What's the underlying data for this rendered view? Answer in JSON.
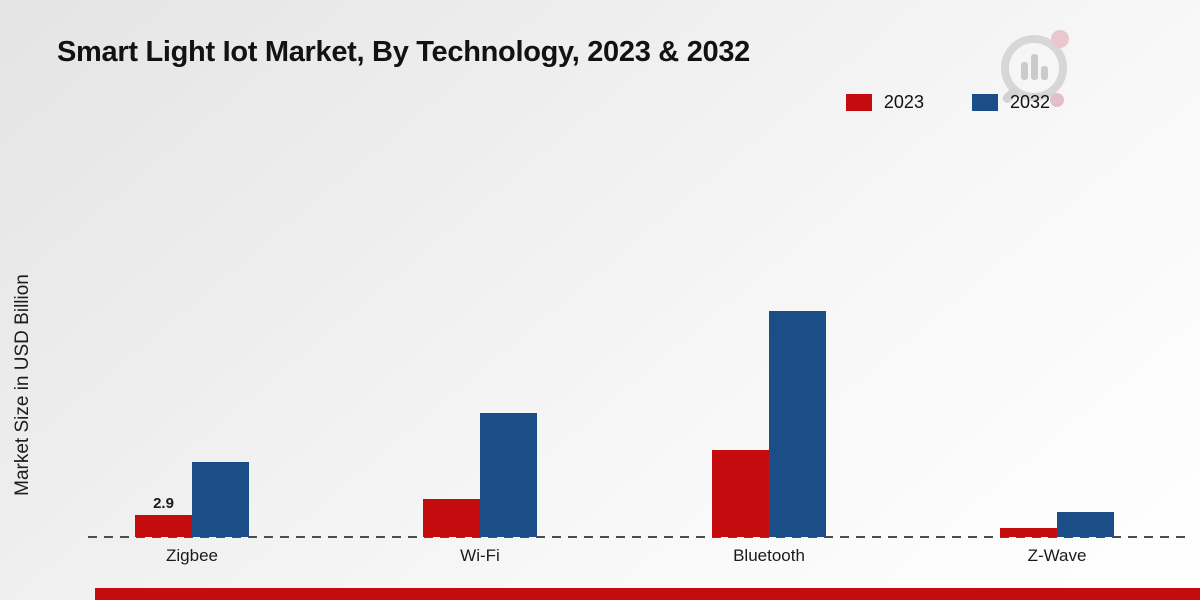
{
  "title": "Smart Light Iot Market, By Technology, 2023 & 2032",
  "ylabel": "Market Size in USD Billion",
  "chart_data": {
    "type": "bar",
    "title": "Smart Light Iot Market, By Technology, 2023 & 2032",
    "xlabel": "",
    "ylabel": "Market Size in USD Billion",
    "categories": [
      "Zigbee",
      "Wi-Fi",
      "Bluetooth",
      "Z-Wave"
    ],
    "series": [
      {
        "name": "2023",
        "color": "#c40b0e",
        "values": [
          2.9,
          5.0,
          11.5,
          1.2
        ]
      },
      {
        "name": "2032",
        "color": "#1b4e86",
        "values": [
          9.9,
          16.3,
          29.7,
          3.3
        ]
      }
    ],
    "annotations": [
      {
        "series_index": 0,
        "category_index": 0,
        "text": "2.9"
      }
    ],
    "ylim": [
      0,
      32
    ],
    "grid": false,
    "legend_position": "top-right",
    "baseline_style": "dashed"
  },
  "footer": {
    "accent_color": "#c40b0e"
  }
}
